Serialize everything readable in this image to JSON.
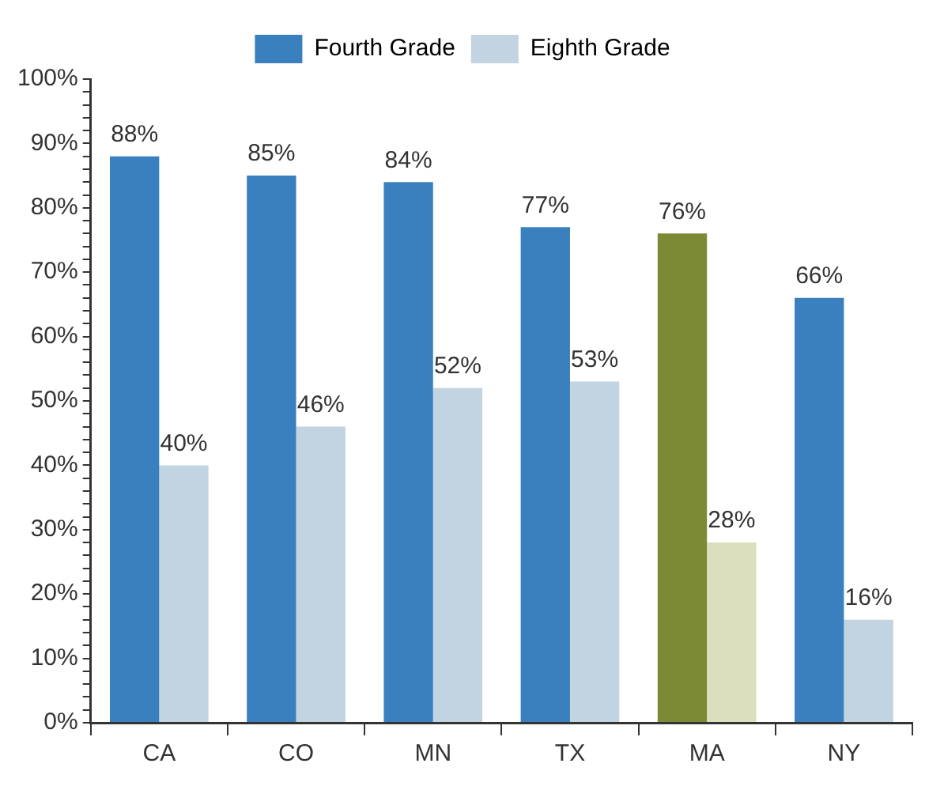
{
  "chart_data": {
    "type": "bar",
    "categories": [
      "CA",
      "CO",
      "MN",
      "TX",
      "MA",
      "NY"
    ],
    "series": [
      {
        "name": "Fourth Grade",
        "color": "#3b80be",
        "colors": [
          "#3b80be",
          "#3b80be",
          "#3b80be",
          "#3b80be",
          "#7d8a35",
          "#3b80be"
        ],
        "values": [
          88,
          85,
          84,
          77,
          76,
          66
        ],
        "value_labels": [
          "88%",
          "85%",
          "84%",
          "77%",
          "76%",
          "66%"
        ]
      },
      {
        "name": "Eighth Grade",
        "color": "#c2d3e2",
        "colors": [
          "#c2d3e2",
          "#c2d3e2",
          "#c2d3e2",
          "#c2d3e2",
          "#dcdfbd",
          "#c2d3e2"
        ],
        "values": [
          40,
          46,
          52,
          53,
          28,
          16
        ],
        "value_labels": [
          "40%",
          "46%",
          "52%",
          "53%",
          "28%",
          "16%"
        ]
      }
    ],
    "ylim": [
      0,
      100
    ],
    "yticks": [
      {
        "value": 0,
        "label": "0%"
      },
      {
        "value": 2,
        "label": null
      },
      {
        "value": 4,
        "label": null
      },
      {
        "value": 6,
        "label": null
      },
      {
        "value": 8,
        "label": null
      },
      {
        "value": 10,
        "label": "10%"
      },
      {
        "value": 12,
        "label": null
      },
      {
        "value": 14,
        "label": null
      },
      {
        "value": 16,
        "label": null
      },
      {
        "value": 18,
        "label": null
      },
      {
        "value": 20,
        "label": "20%"
      },
      {
        "value": 22,
        "label": null
      },
      {
        "value": 24,
        "label": null
      },
      {
        "value": 26,
        "label": null
      },
      {
        "value": 28,
        "label": null
      },
      {
        "value": 30,
        "label": "30%"
      },
      {
        "value": 32,
        "label": null
      },
      {
        "value": 34,
        "label": null
      },
      {
        "value": 36,
        "label": null
      },
      {
        "value": 38,
        "label": null
      },
      {
        "value": 40,
        "label": "40%"
      },
      {
        "value": 42,
        "label": null
      },
      {
        "value": 44,
        "label": null
      },
      {
        "value": 46,
        "label": null
      },
      {
        "value": 48,
        "label": null
      },
      {
        "value": 50,
        "label": "50%"
      },
      {
        "value": 52,
        "label": null
      },
      {
        "value": 54,
        "label": null
      },
      {
        "value": 56,
        "label": null
      },
      {
        "value": 58,
        "label": null
      },
      {
        "value": 60,
        "label": "60%"
      },
      {
        "value": 62,
        "label": null
      },
      {
        "value": 64,
        "label": null
      },
      {
        "value": 66,
        "label": null
      },
      {
        "value": 68,
        "label": null
      },
      {
        "value": 70,
        "label": "70%"
      },
      {
        "value": 72,
        "label": null
      },
      {
        "value": 74,
        "label": null
      },
      {
        "value": 76,
        "label": null
      },
      {
        "value": 78,
        "label": null
      },
      {
        "value": 80,
        "label": "80%"
      },
      {
        "value": 82,
        "label": null
      },
      {
        "value": 84,
        "label": null
      },
      {
        "value": 86,
        "label": null
      },
      {
        "value": 88,
        "label": null
      },
      {
        "value": 90,
        "label": "90%"
      },
      {
        "value": 92,
        "label": null
      },
      {
        "value": 94,
        "label": null
      },
      {
        "value": 96,
        "label": null
      },
      {
        "value": 98,
        "label": null
      },
      {
        "value": 100,
        "label": "100%"
      }
    ],
    "grid": false,
    "legend": "top"
  }
}
